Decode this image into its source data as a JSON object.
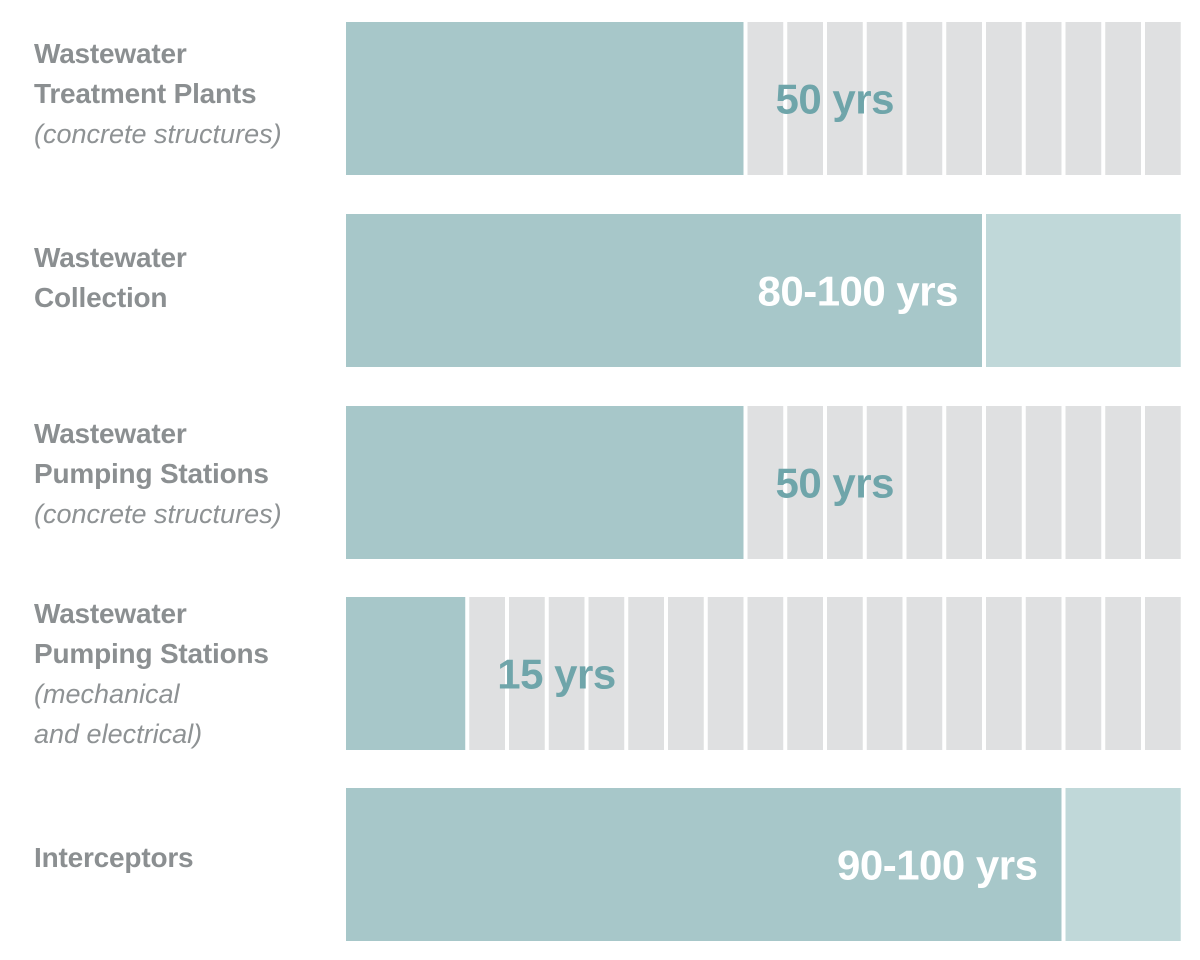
{
  "chart_data": {
    "type": "bar",
    "orientation": "horizontal",
    "categories": [
      {
        "name_lines": [
          "Wastewater",
          "Treatment Plants"
        ],
        "note_lines": [
          "(concrete structures)"
        ]
      },
      {
        "name_lines": [
          "Wastewater",
          "Collection"
        ],
        "note_lines": []
      },
      {
        "name_lines": [
          "Wastewater",
          "Pumping Stations"
        ],
        "note_lines": [
          "(concrete structures)"
        ]
      },
      {
        "name_lines": [
          "Wastewater",
          "Pumping Stations"
        ],
        "note_lines": [
          "(mechanical",
          "and electrical)"
        ]
      },
      {
        "name_lines": [
          "Interceptors"
        ],
        "note_lines": []
      }
    ],
    "series": [
      {
        "values": [
          50,
          80,
          50,
          15,
          90
        ],
        "ranges": [
          [
            50,
            50
          ],
          [
            80,
            100
          ],
          [
            50,
            50
          ],
          [
            15,
            15
          ],
          [
            90,
            100
          ]
        ],
        "data_labels": [
          "50 yrs",
          "80-100 yrs",
          "50 yrs",
          "15 yrs",
          "90-100 yrs"
        ]
      }
    ],
    "xlim": [
      0,
      105
    ],
    "grid_unit": 5,
    "grid": true,
    "legend": false,
    "colors": {
      "bar": "#a7c7c9",
      "range_extension": "#c0d8d9",
      "empty_cell": "#dfe0e1",
      "label_inside_dark": "#6fa5aa",
      "label_inside_light": "#ffffff",
      "category_text": "#8b8f91"
    }
  }
}
